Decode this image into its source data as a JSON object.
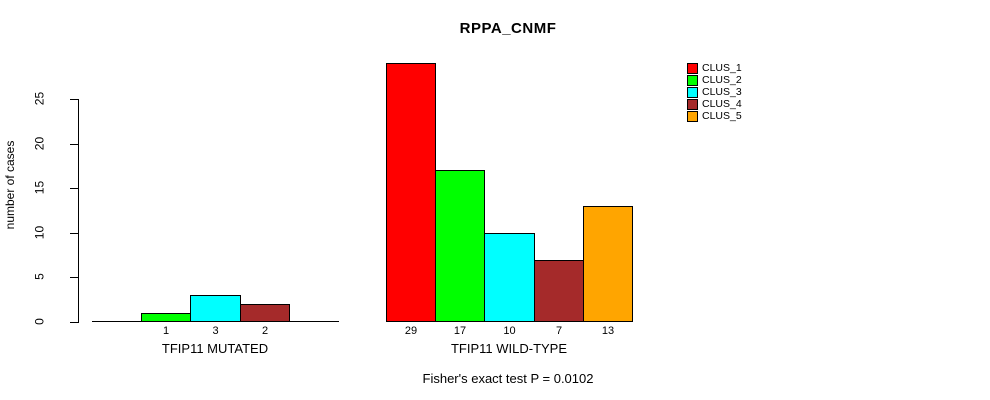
{
  "title": "RPPA_CNMF",
  "footer": "Fisher's exact test P = 0.0102",
  "chart_data": {
    "type": "bar",
    "title": "RPPA_CNMF",
    "xlabel": "",
    "ylabel": "number of cases",
    "yticks": [
      0,
      5,
      10,
      15,
      20,
      25
    ],
    "ylim": [
      0,
      29
    ],
    "grid": false,
    "legend_position": "top-right",
    "series": [
      "CLUS_1",
      "CLUS_2",
      "CLUS_3",
      "CLUS_4",
      "CLUS_5"
    ],
    "series_colors": [
      "#ff0000",
      "#00ff00",
      "#00ffff",
      "#a52a2a",
      "#ffa500"
    ],
    "groups": [
      {
        "label": "TFIP11 MUTATED",
        "values": [
          0,
          1,
          3,
          2,
          0
        ]
      },
      {
        "label": "TFIP11 WILD-TYPE",
        "values": [
          29,
          17,
          10,
          7,
          13
        ]
      }
    ],
    "annotation": "Fisher's exact test P = 0.0102"
  },
  "legend": {
    "items": [
      {
        "label": "CLUS_1",
        "color": "#ff0000"
      },
      {
        "label": "CLUS_2",
        "color": "#00ff00"
      },
      {
        "label": "CLUS_3",
        "color": "#00ffff"
      },
      {
        "label": "CLUS_4",
        "color": "#a52a2a"
      },
      {
        "label": "CLUS_5",
        "color": "#ffa500"
      }
    ]
  }
}
